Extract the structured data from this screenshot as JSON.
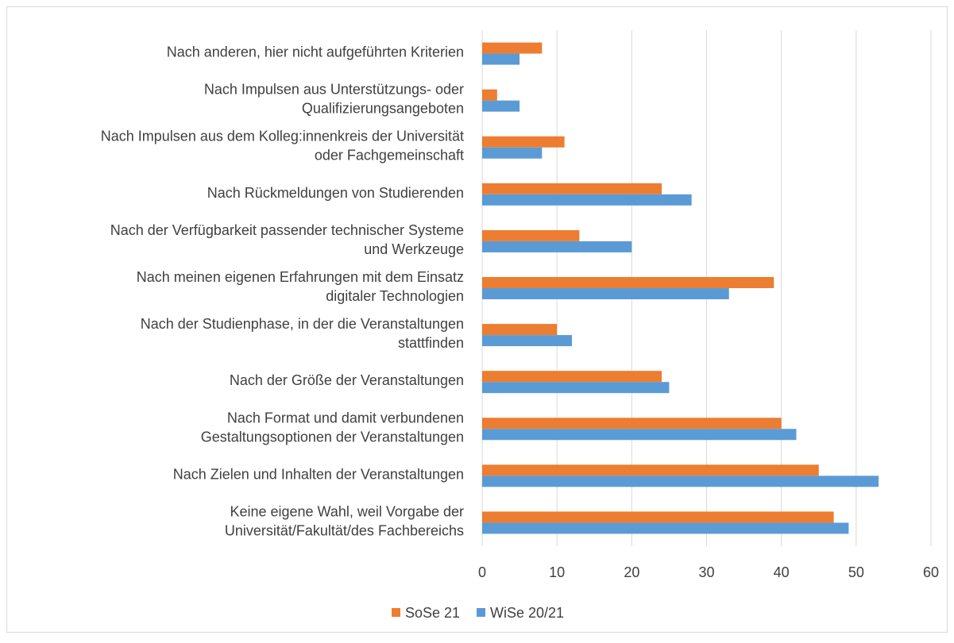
{
  "chart_data": {
    "type": "bar",
    "orientation": "horizontal",
    "categories": [
      [
        "Nach anderen, hier nicht aufgeführten Kriterien"
      ],
      [
        "Nach Impulsen aus Unterstützungs- oder",
        "Qualifizierungsangeboten"
      ],
      [
        "Nach Impulsen aus dem Kolleg:innenkreis der Universität",
        "oder Fachgemeinschaft"
      ],
      [
        "Nach Rückmeldungen von Studierenden"
      ],
      [
        "Nach der Verfügbarkeit passender technischer Systeme",
        "und Werkzeuge"
      ],
      [
        "Nach meinen eigenen Erfahrungen mit dem Einsatz",
        "digitaler Technologien"
      ],
      [
        "Nach der Studienphase, in der die Veranstaltungen",
        "stattfinden"
      ],
      [
        "Nach der Größe der Veranstaltungen"
      ],
      [
        "Nach Format und damit verbundenen",
        "Gestaltungsoptionen der Veranstaltungen"
      ],
      [
        "Nach Zielen und Inhalten der Veranstaltungen"
      ],
      [
        "Keine eigene Wahl, weil Vorgabe der",
        "Universität/Fakultät/des Fachbereichs"
      ]
    ],
    "series": [
      {
        "name": "SoSe 21",
        "color": "#ED7D31",
        "values": [
          8,
          2,
          11,
          24,
          13,
          39,
          10,
          24,
          40,
          45,
          47
        ]
      },
      {
        "name": "WiSe 20/21",
        "color": "#5B9BD5",
        "values": [
          5,
          5,
          8,
          28,
          20,
          33,
          12,
          25,
          42,
          53,
          49
        ]
      }
    ],
    "xlim": [
      0,
      60
    ],
    "xticks": [
      0,
      10,
      20,
      30,
      40,
      50,
      60
    ],
    "grid": true,
    "legend": "bottom"
  }
}
